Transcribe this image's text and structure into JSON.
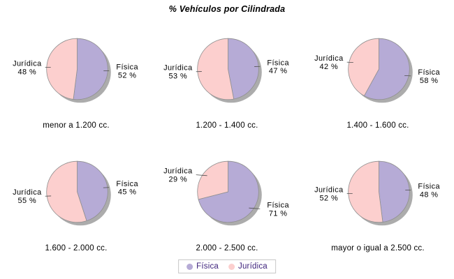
{
  "title": "% Vehículos por Cilindrada",
  "chart_data": {
    "type": "pie",
    "layout": {
      "rows": 2,
      "cols": 3,
      "legend_position": "bottom"
    },
    "series": [
      {
        "name": "Física",
        "color": "#b6abd6"
      },
      {
        "name": "Jurídica",
        "color": "#fccfce"
      }
    ],
    "value_suffix": " %",
    "charts": [
      {
        "category": "menor a 1.200 cc.",
        "values": [
          52,
          48
        ]
      },
      {
        "category": "1.200 - 1.400 cc.",
        "values": [
          47,
          53
        ]
      },
      {
        "category": "1.400 - 1.600 cc.",
        "values": [
          58,
          42
        ]
      },
      {
        "category": "1.600 - 2.000 cc.",
        "values": [
          45,
          55
        ]
      },
      {
        "category": "2.000 - 2.500 cc.",
        "values": [
          71,
          29
        ]
      },
      {
        "category": "mayor o igual a 2.500 cc.",
        "values": [
          48,
          52
        ]
      }
    ]
  },
  "legend": {
    "items": [
      {
        "label": "Física",
        "color": "#b6abd6"
      },
      {
        "label": "Jurídica",
        "color": "#fccfce"
      }
    ]
  },
  "colors": {
    "slice_outline": "#8f8f8f",
    "shadow": "#9e9e9e",
    "leader_line": "#4d4d4d",
    "label_text": "#000000",
    "legend_text": "#3b1f7a",
    "legend_border": "#c8c8c8",
    "background": "#ffffff"
  }
}
